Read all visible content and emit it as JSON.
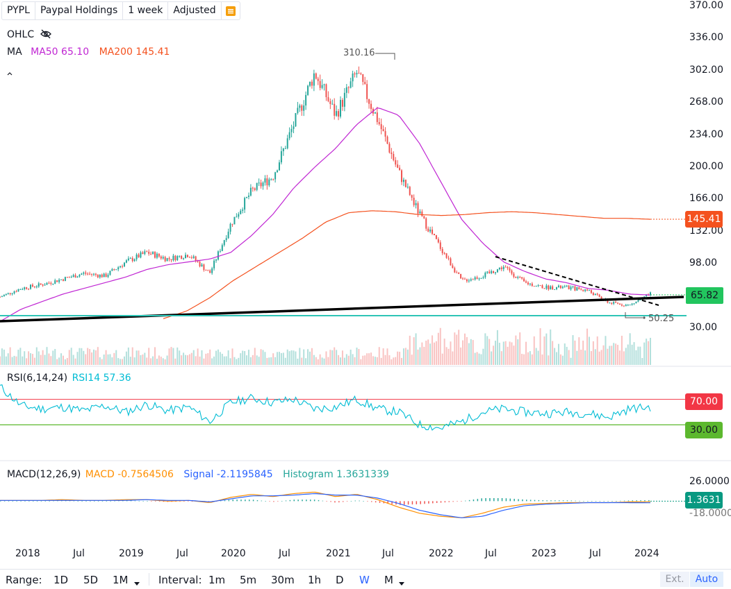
{
  "header": {
    "symbol": "PYPL",
    "name": "Paypal Holdings",
    "interval": "1 week",
    "adjust": "Adjusted",
    "settings_icon": "list-icon"
  },
  "legend": {
    "ohlc_label": "OHLC",
    "visibility_icon": "eye-off-icon",
    "ma_label": "MA",
    "ma50_label": "MA50 65.10",
    "ma200_label": "MA200 145.41",
    "collapse_icon": "chevron-up-icon"
  },
  "colors": {
    "up": "#26a69a",
    "down": "#ef5350",
    "ma50": "#c026d3",
    "ma200": "#f4511e",
    "rsi": "#00bcd4",
    "macd": "#ff8f00",
    "signal": "#2962ff",
    "support": "#2ec4b6",
    "overbought": "#f23645",
    "oversold": "#5cb82e"
  },
  "annotations": {
    "high_label": "310.16",
    "low_label": "50.25"
  },
  "price_axis": [
    "370.00",
    "336.00",
    "302.00",
    "268.00",
    "234.00",
    "200.00",
    "166.00",
    "132.00",
    "98.00",
    "64.00",
    "30.00"
  ],
  "price_tags": {
    "ma200": "145.41",
    "last": "65.82"
  },
  "rsi": {
    "label": "RSI(6,14,24)",
    "value_label": "RSI14 57.36",
    "upper_level": "70.00",
    "lower_level": "30.00"
  },
  "macd": {
    "label": "MACD(12,26,9)",
    "macd_label": "MACD -0.7564506",
    "signal_label": "Signal -2.1195845",
    "hist_label": "Histogram 1.3631339",
    "axis_top": "26.0000",
    "axis_bottom": "-18.0000",
    "tag": "1.3631"
  },
  "time_axis": [
    "2018",
    "Jul",
    "2019",
    "Jul",
    "2020",
    "Jul",
    "2021",
    "Jul",
    "2022",
    "Jul",
    "2023",
    "Jul",
    "2024"
  ],
  "bottom_bar": {
    "range_label": "Range:",
    "ranges": [
      "1D",
      "5D",
      "1M"
    ],
    "interval_label": "Interval:",
    "intervals": [
      "1m",
      "5m",
      "30m",
      "1h",
      "D",
      "W",
      "M"
    ],
    "ext": "Ext.",
    "auto": "Auto"
  },
  "chart_data": {
    "type": "line",
    "title": "PYPL Paypal Holdings 1 week",
    "x": [
      "2017-11",
      "2018-01",
      "2018-04",
      "2018-07",
      "2018-10",
      "2019-01",
      "2019-04",
      "2019-07",
      "2019-10",
      "2020-01",
      "2020-03",
      "2020-05",
      "2020-07",
      "2020-10",
      "2021-01",
      "2021-02",
      "2021-04",
      "2021-07",
      "2021-09",
      "2021-11",
      "2022-01",
      "2022-03",
      "2022-05",
      "2022-07",
      "2022-09",
      "2022-11",
      "2023-01",
      "2023-04",
      "2023-07",
      "2023-10",
      "2023-11",
      "2024-01"
    ],
    "series": [
      {
        "name": "close",
        "values": [
          63,
          72,
          76,
          82,
          88,
          85,
          100,
          110,
          103,
          108,
          88,
          140,
          175,
          190,
          245,
          300,
          255,
          300,
          250,
          195,
          150,
          115,
          80,
          85,
          95,
          78,
          73,
          73,
          70,
          57,
          54,
          66
        ]
      },
      {
        "name": "MA50",
        "values": [
          37,
          50,
          58,
          66,
          72,
          78,
          84,
          92,
          97,
          100,
          103,
          110,
          128,
          150,
          178,
          200,
          220,
          245,
          263,
          255,
          225,
          185,
          145,
          120,
          100,
          90,
          82,
          78,
          72,
          70,
          66,
          65
        ]
      },
      {
        "name": "MA200",
        "values": [
          null,
          null,
          null,
          null,
          null,
          null,
          null,
          null,
          null,
          null,
          40,
          48,
          62,
          80,
          95,
          110,
          125,
          142,
          152,
          154,
          153,
          150,
          149,
          150,
          152,
          153,
          152,
          150,
          148,
          146,
          146,
          145
        ]
      }
    ],
    "ylim": [
      30,
      370
    ],
    "annotations": [
      {
        "label": "310.16",
        "type": "high"
      },
      {
        "label": "50.25",
        "type": "low"
      }
    ],
    "rsi_series": {
      "name": "RSI14",
      "values": [
        90,
        60,
        55,
        58,
        52,
        60,
        50,
        62,
        52,
        58,
        35,
        65,
        72,
        65,
        70,
        55,
        58,
        70,
        55,
        50,
        30,
        25,
        35,
        50,
        55,
        50,
        48,
        50,
        48,
        42,
        55,
        58
      ],
      "levels": [
        70,
        30
      ]
    },
    "macd_series": {
      "macd": [
        1,
        1,
        1,
        2,
        1,
        1,
        2,
        2,
        0,
        1,
        -2,
        5,
        9,
        6,
        10,
        12,
        6,
        9,
        2,
        -8,
        -16,
        -20,
        -22,
        -16,
        -8,
        -4,
        -3,
        -2,
        -2,
        -2,
        -1,
        -0.76
      ],
      "signal": [
        1,
        1,
        1,
        1,
        1,
        1,
        1,
        2,
        1,
        1,
        -1,
        3,
        7,
        7,
        8,
        10,
        8,
        8,
        4,
        -3,
        -12,
        -18,
        -22,
        -20,
        -12,
        -6,
        -4,
        -3,
        -2,
        -2,
        -2,
        -2.12
      ],
      "ylim": [
        -18,
        26
      ]
    }
  }
}
